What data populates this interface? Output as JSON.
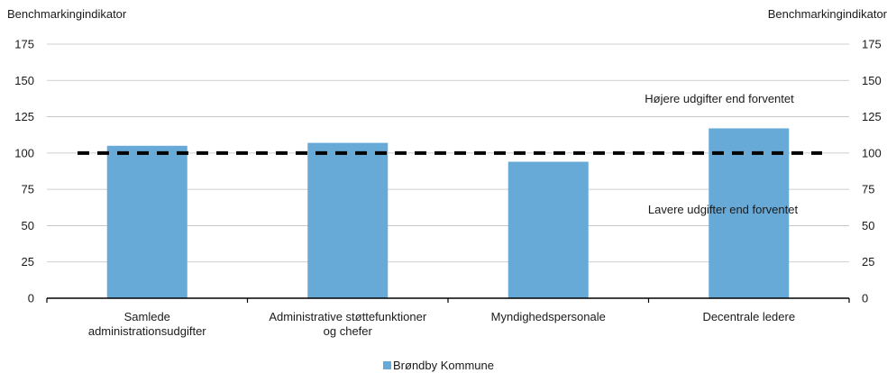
{
  "chart_data": {
    "type": "bar",
    "categories": [
      [
        "Samlede",
        "administrationsudgifter"
      ],
      [
        "Administrative støttefunktioner",
        "og chefer"
      ],
      [
        "Myndighedspersonale"
      ],
      [
        "Decentrale ledere"
      ]
    ],
    "series": [
      {
        "name": "Brøndby Kommune",
        "values": [
          105,
          107,
          94,
          117
        ],
        "color": "#67aad7"
      }
    ],
    "reference_line": {
      "value": 100,
      "style": "dashed",
      "color": "#000000"
    },
    "ylabel_left": "Benchmarkingindikator",
    "ylabel_right": "Benchmarkingindikator",
    "ylim": [
      0,
      175
    ],
    "yticks": [
      0,
      25,
      50,
      75,
      100,
      125,
      150,
      175
    ],
    "grid": true,
    "legend_position": "bottom-center",
    "annotations": [
      {
        "text": "Højere udgifter end forventet",
        "y": 150
      },
      {
        "text": "Lavere udgifter end forventet",
        "y": 50
      }
    ]
  }
}
